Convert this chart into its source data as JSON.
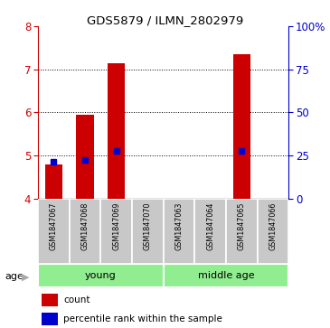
{
  "title": "GDS5879 / ILMN_2802979",
  "samples": [
    "GSM1847067",
    "GSM1847068",
    "GSM1847069",
    "GSM1847070",
    "GSM1847063",
    "GSM1847064",
    "GSM1847065",
    "GSM1847066"
  ],
  "red_bar_tops": [
    4.8,
    5.95,
    7.15,
    4.0,
    4.0,
    4.0,
    7.35,
    4.0
  ],
  "blue_markers": [
    4.85,
    4.9,
    5.1,
    null,
    null,
    null,
    5.1,
    null
  ],
  "ylim": [
    4,
    8
  ],
  "yticks_left": [
    4,
    5,
    6,
    7,
    8
  ],
  "yticks_right": [
    0,
    25,
    50,
    75,
    100
  ],
  "ylabel_left_color": "#cc0000",
  "ylabel_right_color": "#0000cc",
  "bar_color": "#cc0000",
  "marker_color": "#0000cc",
  "bar_width": 0.55,
  "groups": [
    {
      "label": "young",
      "start": 0,
      "end": 4
    },
    {
      "label": "middle age",
      "start": 4,
      "end": 8
    }
  ],
  "sample_box_color": "#c8c8c8",
  "group_fill_color": "#90ee90",
  "group_edge_color": "#ffffff",
  "legend_red_label": "count",
  "legend_blue_label": "percentile rank within the sample",
  "age_label": "age",
  "grid_color": "black",
  "grid_linestyle": ":",
  "grid_linewidth": 0.7,
  "background_color": "#ffffff"
}
